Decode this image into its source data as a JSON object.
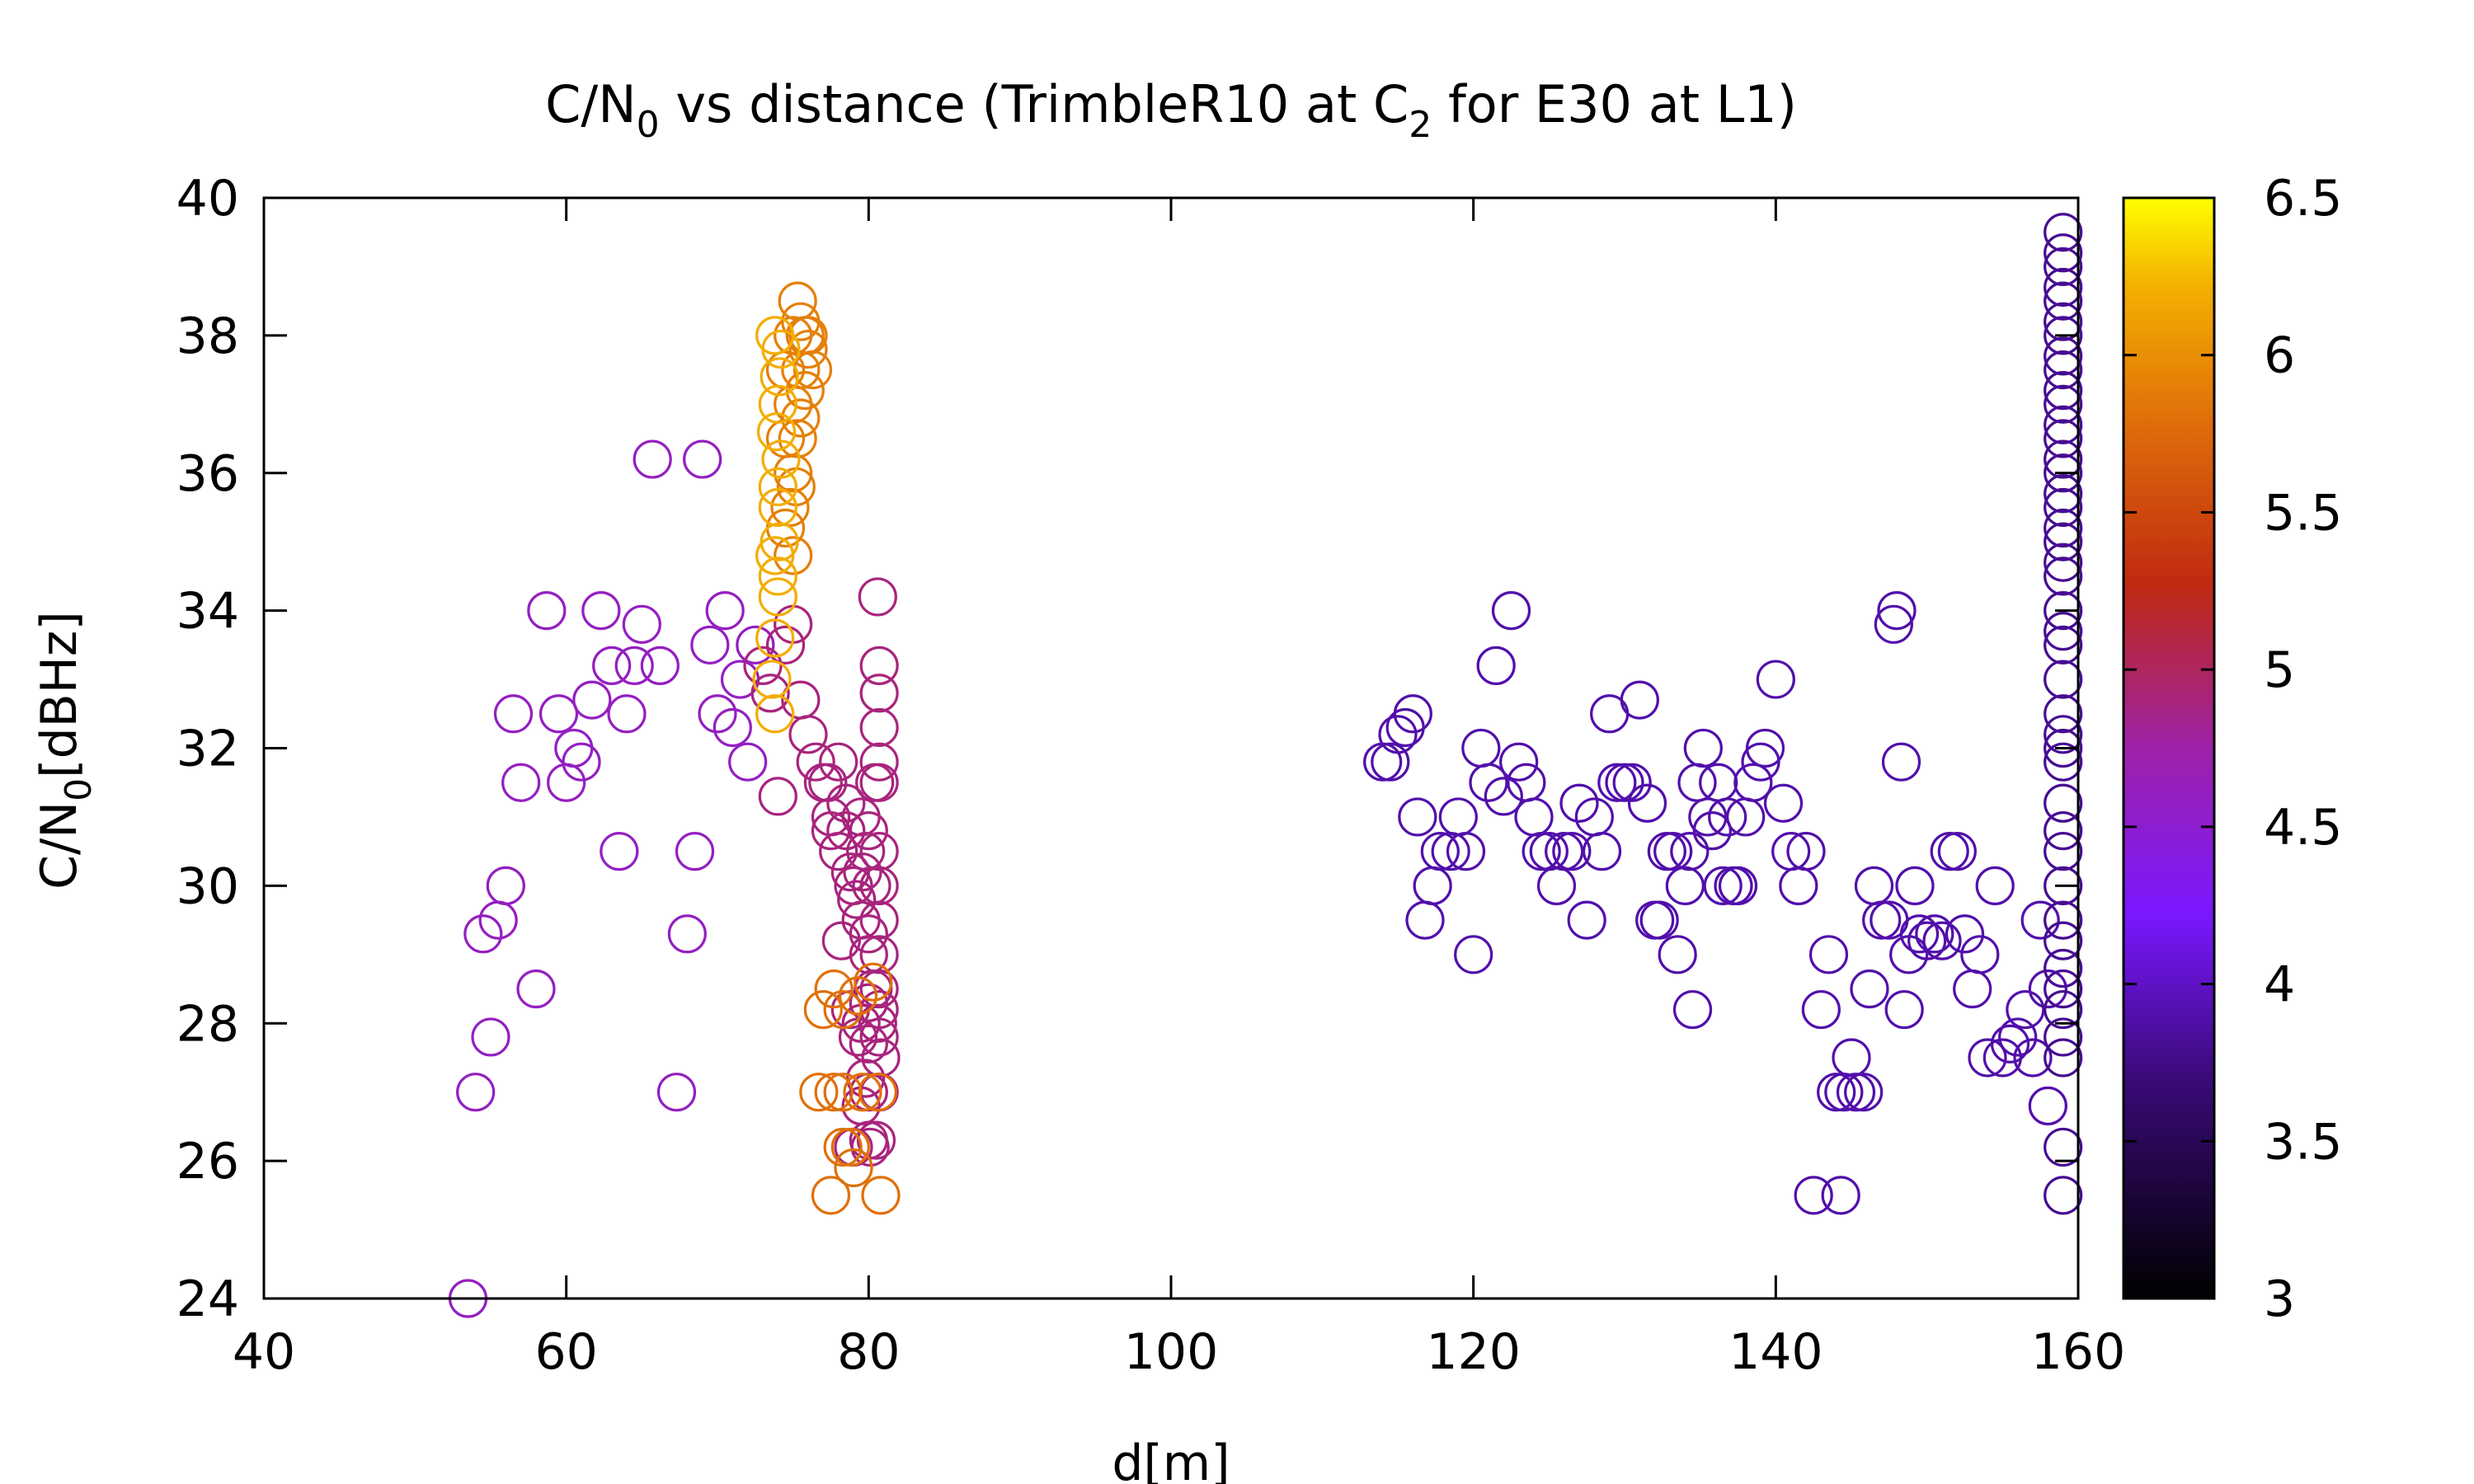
{
  "chart_data": {
    "type": "scatter",
    "title": {
      "pre": "C/N",
      "sub1": "0",
      "mid": " vs distance (TrimbleR10 at C",
      "sub2": "2",
      "post": " for E30 at L1)"
    },
    "xlabel": "d[m]",
    "ylabel": {
      "pre": "C/N",
      "sub": "0",
      "post": "[dBHz]"
    },
    "xlim": [
      40,
      160
    ],
    "ylim": [
      24,
      40
    ],
    "xticks": [
      40,
      60,
      80,
      100,
      120,
      140,
      160
    ],
    "yticks": [
      24,
      26,
      28,
      30,
      32,
      34,
      36,
      38,
      40
    ],
    "colorbar": {
      "range": [
        3,
        6.5
      ],
      "ticks": [
        3,
        3.5,
        4,
        4.5,
        5,
        5.5,
        6,
        6.5
      ],
      "palette": "black-purple-red-orange-yellow"
    },
    "marker": "open-circle",
    "grid": false,
    "clusters": [
      {
        "color_value": 4.6,
        "points": [
          [
            53.5,
            24
          ],
          [
            54,
            27
          ],
          [
            54.5,
            29.3
          ],
          [
            55,
            27.8
          ],
          [
            55.5,
            29.5
          ],
          [
            56,
            30
          ],
          [
            56.5,
            32.5
          ],
          [
            57,
            31.5
          ],
          [
            58,
            28.5
          ],
          [
            58.7,
            34
          ],
          [
            59.5,
            32.5
          ],
          [
            60,
            31.5
          ],
          [
            60.5,
            32
          ],
          [
            61,
            31.8
          ],
          [
            61.7,
            32.7
          ],
          [
            62.3,
            34
          ],
          [
            63,
            33.2
          ],
          [
            63.5,
            30.5
          ],
          [
            64,
            32.5
          ],
          [
            64.5,
            33.2
          ],
          [
            65,
            33.8
          ],
          [
            65.7,
            36.2
          ],
          [
            66.2,
            33.2
          ],
          [
            67.3,
            27
          ],
          [
            68,
            29.3
          ],
          [
            68.5,
            30.5
          ],
          [
            69,
            36.2
          ],
          [
            69.5,
            33.5
          ],
          [
            70,
            32.5
          ],
          [
            70.5,
            34
          ],
          [
            71,
            32.3
          ],
          [
            71.5,
            33
          ],
          [
            72,
            31.8
          ],
          [
            72.5,
            33.5
          ]
        ]
      },
      {
        "color_value": 4.9,
        "points": [
          [
            73,
            33.2
          ],
          [
            73.5,
            32.8
          ],
          [
            74,
            31.3
          ],
          [
            74.5,
            33.5
          ],
          [
            75,
            33.8
          ],
          [
            75.5,
            32.7
          ],
          [
            76,
            32.2
          ],
          [
            76.5,
            31.8
          ],
          [
            77,
            31.5
          ],
          [
            77.5,
            31
          ],
          [
            78,
            30.5
          ],
          [
            78.5,
            30.8
          ],
          [
            79,
            30
          ],
          [
            79.5,
            29.5
          ],
          [
            80,
            29
          ],
          [
            80.3,
            28.5
          ],
          [
            80.6,
            28
          ],
          [
            80.8,
            27.5
          ],
          [
            78.2,
            29.2
          ],
          [
            78.8,
            28.2
          ],
          [
            79.3,
            27.8
          ],
          [
            79.8,
            27.2
          ],
          [
            80.1,
            26.2
          ],
          [
            79,
            26.2
          ],
          [
            80.6,
            34.2
          ],
          [
            80.7,
            33.2
          ],
          [
            80.7,
            32.8
          ],
          [
            80.7,
            32.3
          ],
          [
            80.7,
            31.8
          ],
          [
            80.7,
            31.5
          ],
          [
            80.7,
            30.5
          ],
          [
            80.7,
            30
          ],
          [
            80.7,
            29.5
          ],
          [
            80.7,
            29
          ],
          [
            80.7,
            28.5
          ],
          [
            80.7,
            28.2
          ],
          [
            80.7,
            27.8
          ],
          [
            80.7,
            27
          ],
          [
            80.5,
            26.3
          ],
          [
            79.5,
            31
          ],
          [
            79.8,
            30.5
          ],
          [
            80.2,
            30
          ],
          [
            79.2,
            29.8
          ],
          [
            78.5,
            31.2
          ],
          [
            78,
            31.8
          ],
          [
            77.5,
            30.8
          ],
          [
            80,
            30.8
          ],
          [
            80,
            29.3
          ],
          [
            80,
            28.3
          ],
          [
            80,
            27.7
          ],
          [
            80,
            27
          ],
          [
            80,
            26.3
          ],
          [
            79.5,
            28
          ],
          [
            79.5,
            26.8
          ],
          [
            77.3,
            31.5
          ],
          [
            78.8,
            30.2
          ],
          [
            79.6,
            30.2
          ],
          [
            80.4,
            31.5
          ]
        ]
      },
      {
        "color_value": 5.8,
        "points": [
          [
            77.5,
            25.5
          ],
          [
            80.8,
            25.5
          ],
          [
            76.7,
            27
          ],
          [
            77.7,
            27
          ],
          [
            78.3,
            27
          ],
          [
            77,
            28.2
          ],
          [
            77.7,
            28.5
          ],
          [
            78.3,
            28.2
          ],
          [
            78.3,
            26.2
          ],
          [
            78.8,
            26.2
          ],
          [
            79.6,
            27
          ],
          [
            80.6,
            27
          ],
          [
            79.3,
            28.4
          ],
          [
            80.3,
            28.6
          ],
          [
            79,
            25.9
          ]
        ]
      },
      {
        "color_value": 5.9,
        "points": [
          [
            75.3,
            38.5
          ],
          [
            75.5,
            38.2
          ],
          [
            75.8,
            38
          ],
          [
            76,
            37.8
          ],
          [
            76.3,
            37.5
          ],
          [
            75,
            38
          ],
          [
            75.5,
            37.5
          ],
          [
            75,
            37
          ],
          [
            75.3,
            36.5
          ],
          [
            75,
            36
          ],
          [
            74.8,
            35.5
          ],
          [
            75.5,
            36.8
          ],
          [
            75.2,
            35.8
          ],
          [
            75.8,
            37.2
          ],
          [
            75,
            34.8
          ],
          [
            74.5,
            35.2
          ],
          [
            74.5,
            36.5
          ],
          [
            74.5,
            37.5
          ],
          [
            76,
            38
          ]
        ]
      },
      {
        "color_value": 6.2,
        "points": [
          [
            73.8,
            38
          ],
          [
            74.2,
            37.8
          ],
          [
            74,
            37
          ],
          [
            74.2,
            36.2
          ],
          [
            74,
            35.5
          ],
          [
            73.8,
            34.8
          ],
          [
            74,
            34.2
          ],
          [
            73.8,
            33.6
          ],
          [
            73.6,
            33
          ],
          [
            73.8,
            32.5
          ],
          [
            74,
            34.5
          ],
          [
            74.1,
            35
          ],
          [
            74,
            35.8
          ],
          [
            73.9,
            36.6
          ],
          [
            74.1,
            37.4
          ]
        ]
      },
      {
        "color_value": 3.9,
        "points": [
          [
            114,
            31.8
          ],
          [
            114.5,
            31.8
          ],
          [
            115,
            32.2
          ],
          [
            115.5,
            32.3
          ],
          [
            116,
            32.5
          ],
          [
            116.3,
            31
          ],
          [
            116.8,
            29.5
          ],
          [
            117.3,
            30
          ],
          [
            117.8,
            30.5
          ],
          [
            118.5,
            30.5
          ],
          [
            119,
            31
          ],
          [
            119.5,
            30.5
          ],
          [
            120,
            29
          ],
          [
            120.5,
            32
          ],
          [
            121,
            31.5
          ],
          [
            121.5,
            33.2
          ],
          [
            122,
            31.3
          ],
          [
            122.5,
            34
          ],
          [
            123,
            31.8
          ],
          [
            123.5,
            31.5
          ],
          [
            124,
            31
          ],
          [
            124.5,
            30.5
          ],
          [
            125,
            30.5
          ],
          [
            125.5,
            30
          ],
          [
            126,
            30.5
          ],
          [
            126.5,
            30.5
          ],
          [
            127,
            31.2
          ],
          [
            127.5,
            29.5
          ],
          [
            128,
            31
          ],
          [
            128.5,
            30.5
          ],
          [
            129,
            32.5
          ],
          [
            129.5,
            31.5
          ],
          [
            130,
            31.5
          ],
          [
            130.5,
            31.5
          ],
          [
            131,
            32.7
          ],
          [
            131.5,
            31.2
          ],
          [
            132,
            29.5
          ],
          [
            132.3,
            29.5
          ],
          [
            132.8,
            30.5
          ],
          [
            133.2,
            30.5
          ],
          [
            133.5,
            29
          ],
          [
            134,
            30
          ],
          [
            134.3,
            30.5
          ],
          [
            134.5,
            28.2
          ],
          [
            134.8,
            31.5
          ],
          [
            135.2,
            32
          ],
          [
            135.5,
            31
          ],
          [
            135.8,
            30.8
          ],
          [
            136.2,
            31.5
          ],
          [
            136.5,
            30
          ],
          [
            136.8,
            31
          ],
          [
            137.2,
            30
          ],
          [
            137.5,
            30
          ],
          [
            138,
            31
          ],
          [
            138.5,
            31.5
          ],
          [
            139,
            31.8
          ],
          [
            139.3,
            32
          ],
          [
            140,
            33
          ],
          [
            140.5,
            31.2
          ],
          [
            141,
            30.5
          ],
          [
            141.5,
            30
          ],
          [
            142,
            30.5
          ],
          [
            142.5,
            25.5
          ],
          [
            143,
            28.2
          ],
          [
            143.5,
            29
          ],
          [
            144,
            27
          ],
          [
            144.3,
            25.5
          ],
          [
            144.5,
            27
          ],
          [
            145,
            27.5
          ],
          [
            145.3,
            27
          ],
          [
            145.8,
            27
          ],
          [
            146.2,
            28.5
          ],
          [
            146.5,
            30
          ],
          [
            147,
            29.5
          ],
          [
            147.5,
            29.5
          ],
          [
            147.8,
            33.8
          ],
          [
            148,
            34
          ],
          [
            148.3,
            31.8
          ],
          [
            148.5,
            28.2
          ],
          [
            148.8,
            29
          ],
          [
            149.2,
            30
          ],
          [
            149.5,
            29.3
          ],
          [
            150,
            29.2
          ],
          [
            150.5,
            29.3
          ],
          [
            151,
            29.2
          ],
          [
            151.5,
            30.5
          ],
          [
            152,
            30.5
          ],
          [
            152.5,
            29.3
          ],
          [
            153,
            28.5
          ],
          [
            153.5,
            29
          ],
          [
            154,
            27.5
          ],
          [
            154.5,
            30
          ],
          [
            155,
            27.5
          ],
          [
            155.5,
            27.7
          ],
          [
            156,
            27.8
          ],
          [
            156.5,
            28.2
          ],
          [
            157,
            27.5
          ],
          [
            157.5,
            29.5
          ],
          [
            158,
            28.5
          ],
          [
            158,
            26.8
          ]
        ]
      },
      {
        "color_value": 3.8,
        "points": [
          [
            159,
            39.5
          ],
          [
            159,
            39.2
          ],
          [
            159,
            39
          ],
          [
            159,
            38.7
          ],
          [
            159,
            38.5
          ],
          [
            159,
            38.2
          ],
          [
            159,
            38
          ],
          [
            159,
            37.7
          ],
          [
            159,
            37.5
          ],
          [
            159,
            37.2
          ],
          [
            159,
            37
          ],
          [
            159,
            36.7
          ],
          [
            159,
            36.5
          ],
          [
            159,
            36.2
          ],
          [
            159,
            36
          ],
          [
            159,
            35.7
          ],
          [
            159,
            35.5
          ],
          [
            159,
            35.2
          ],
          [
            159,
            35
          ],
          [
            159,
            34.7
          ],
          [
            159,
            34.5
          ],
          [
            159,
            34
          ],
          [
            159,
            33.7
          ],
          [
            159,
            33.5
          ],
          [
            159,
            33
          ],
          [
            159,
            32.5
          ],
          [
            159,
            32.2
          ],
          [
            159,
            32
          ],
          [
            159,
            31.8
          ],
          [
            159,
            31.2
          ],
          [
            159,
            30.8
          ],
          [
            159,
            30.5
          ],
          [
            159,
            30
          ],
          [
            159,
            29.5
          ],
          [
            159,
            29.2
          ],
          [
            159,
            28.8
          ],
          [
            159,
            28.5
          ],
          [
            159,
            28.2
          ],
          [
            159,
            27.8
          ],
          [
            159,
            27.5
          ],
          [
            159,
            26.2
          ],
          [
            159,
            25.5
          ]
        ]
      }
    ]
  }
}
